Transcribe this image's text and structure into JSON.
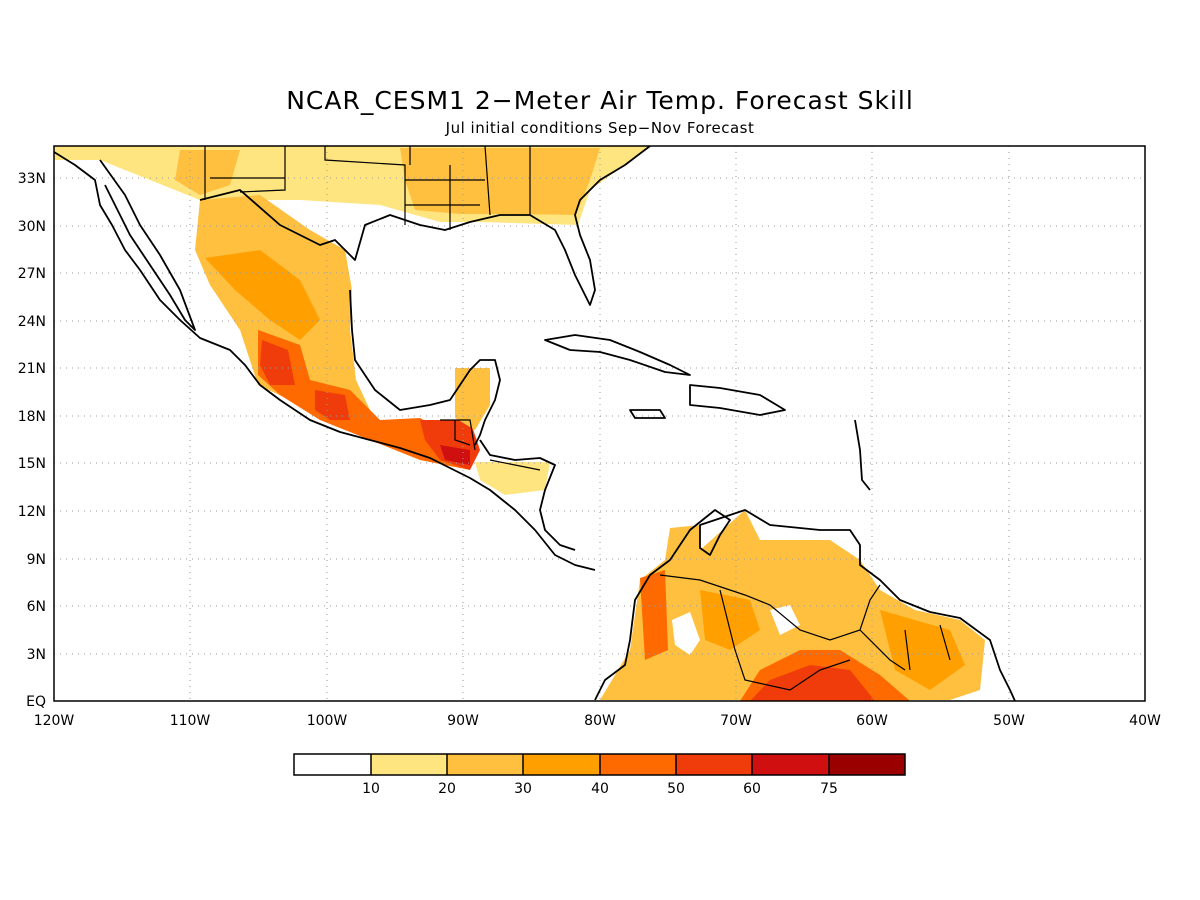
{
  "title": "NCAR_CESM1 2−Meter Air Temp. Forecast Skill",
  "subtitle": "Jul initial conditions  Sep−Nov Forecast",
  "lat_ticks": [
    "33N",
    "30N",
    "27N",
    "24N",
    "21N",
    "18N",
    "15N",
    "12N",
    "9N",
    "6N",
    "3N",
    "EQ"
  ],
  "lon_ticks": [
    "120W",
    "110W",
    "100W",
    "90W",
    "80W",
    "70W",
    "60W",
    "50W",
    "40W"
  ],
  "map_extent": {
    "lon": [
      -120,
      -40
    ],
    "lat": [
      0,
      35
    ]
  },
  "colorbar": {
    "labels": [
      "10",
      "20",
      "30",
      "40",
      "50",
      "60",
      "75"
    ],
    "colors": [
      "#ffffff",
      "#ffe580",
      "#ffc040",
      "#ffa000",
      "#ff6a00",
      "#f03c0a",
      "#d01010",
      "#9a0000"
    ]
  },
  "skill_regions": [
    {
      "name": "southern-us",
      "level": 2
    },
    {
      "name": "northern-mexico",
      "level": 3
    },
    {
      "name": "southwest-mexico",
      "level": 5
    },
    {
      "name": "central-america",
      "level": 6
    },
    {
      "name": "yucatan",
      "level": 3
    },
    {
      "name": "colombia-venezuela",
      "level": 3
    },
    {
      "name": "amazon-north",
      "level": 5
    }
  ]
}
